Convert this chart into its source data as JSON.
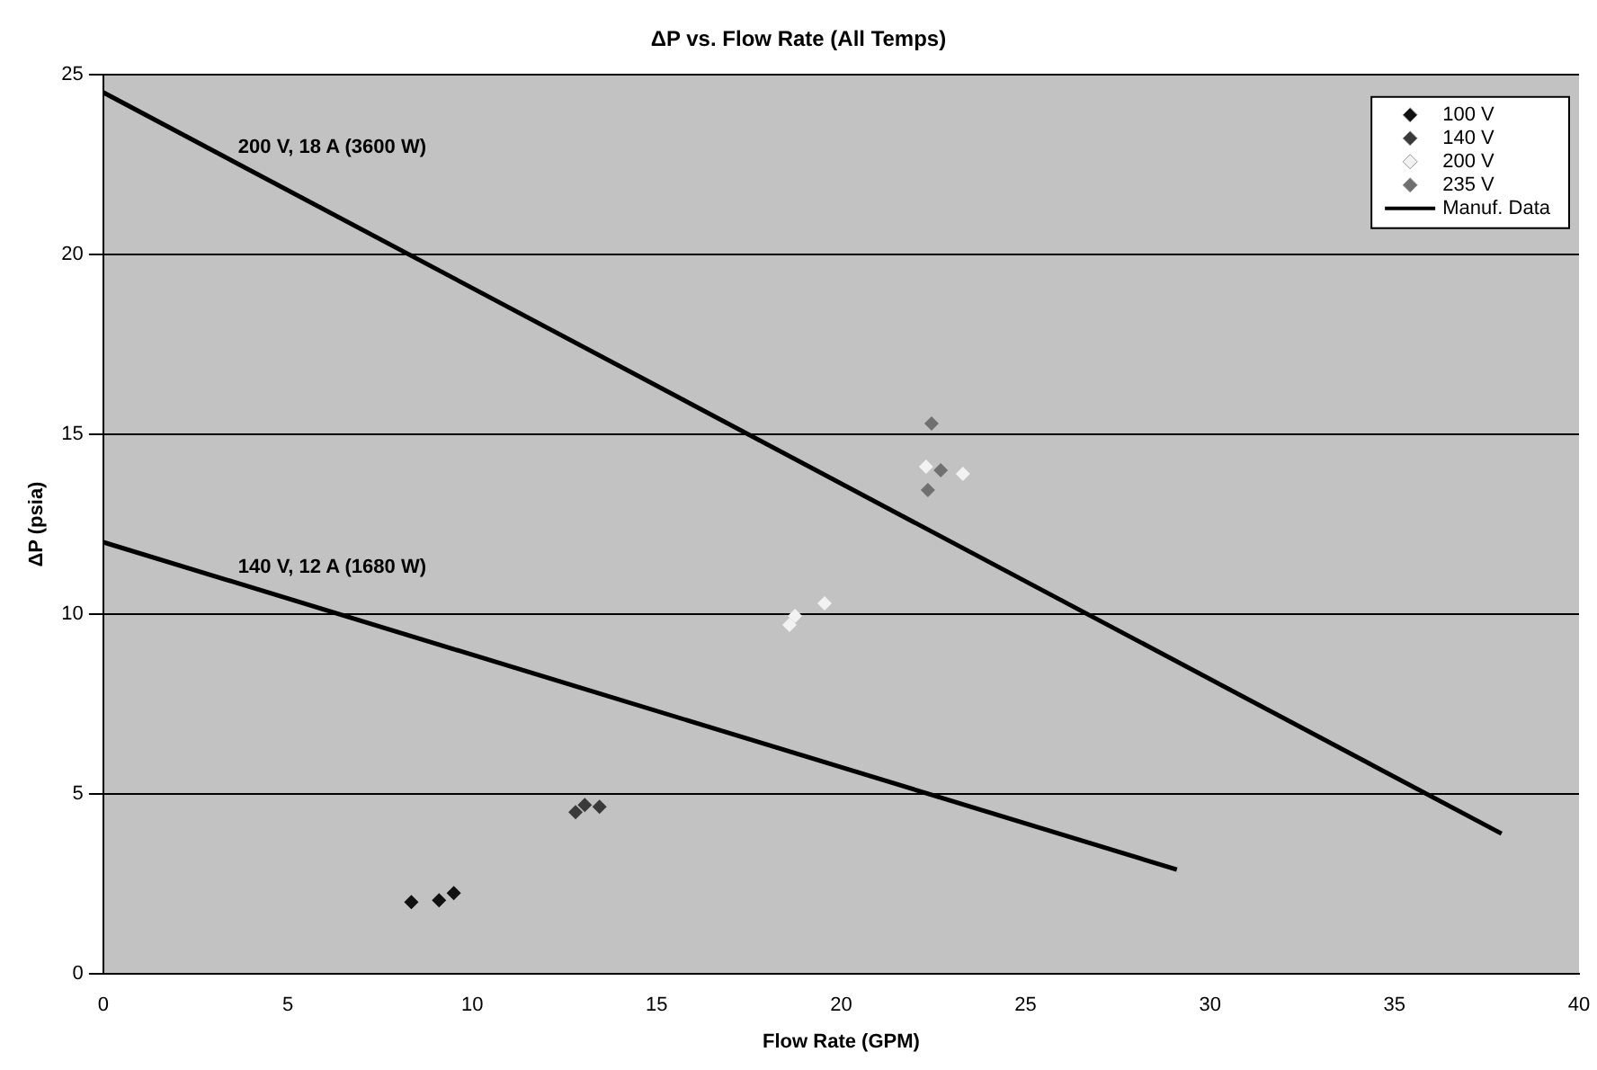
{
  "chart_data": {
    "type": "scatter",
    "title": "ΔP vs. Flow Rate (All Temps)",
    "xlabel": "Flow Rate (GPM)",
    "ylabel": "ΔP (psia)",
    "xlim": [
      0,
      40
    ],
    "xticks": [
      0,
      5,
      10,
      15,
      20,
      25,
      30,
      35,
      40
    ],
    "ylim": [
      0,
      25
    ],
    "yticks": [
      0,
      5,
      10,
      15,
      20,
      25
    ],
    "grid": "y",
    "legend": "top right",
    "marker": "diamond",
    "series": [
      {
        "name": "100 V",
        "color": "#111111",
        "x": [
          8.35,
          9.1,
          9.5
        ],
        "values": [
          2.0,
          2.05,
          2.25
        ]
      },
      {
        "name": "140 V",
        "color": "#3a3a3a",
        "x": [
          12.8,
          13.05,
          13.45
        ],
        "values": [
          4.5,
          4.7,
          4.65
        ]
      },
      {
        "name": "200 V",
        "color": "#f2f2f2",
        "x": [
          18.6,
          18.75,
          19.55,
          22.3,
          23.3
        ],
        "values": [
          9.7,
          9.95,
          10.3,
          14.1,
          13.9
        ]
      },
      {
        "name": "235 V",
        "color": "#707070",
        "x": [
          22.45,
          22.7,
          22.35
        ],
        "values": [
          15.3,
          14.0,
          13.45
        ]
      },
      {
        "name": "Manuf. Data",
        "type": "line",
        "marker": "none",
        "color": "#000000",
        "x": [
          0,
          37.9
        ],
        "values": [
          24.5,
          3.9
        ]
      },
      {
        "type": "line",
        "marker": "none",
        "color": "#000000",
        "x": [
          0,
          29.1
        ],
        "values": [
          12.0,
          2.9
        ]
      }
    ],
    "annotations": [
      "200 V, 18 A (3600 W)",
      "140 V, 12 A (1680 W)"
    ]
  }
}
